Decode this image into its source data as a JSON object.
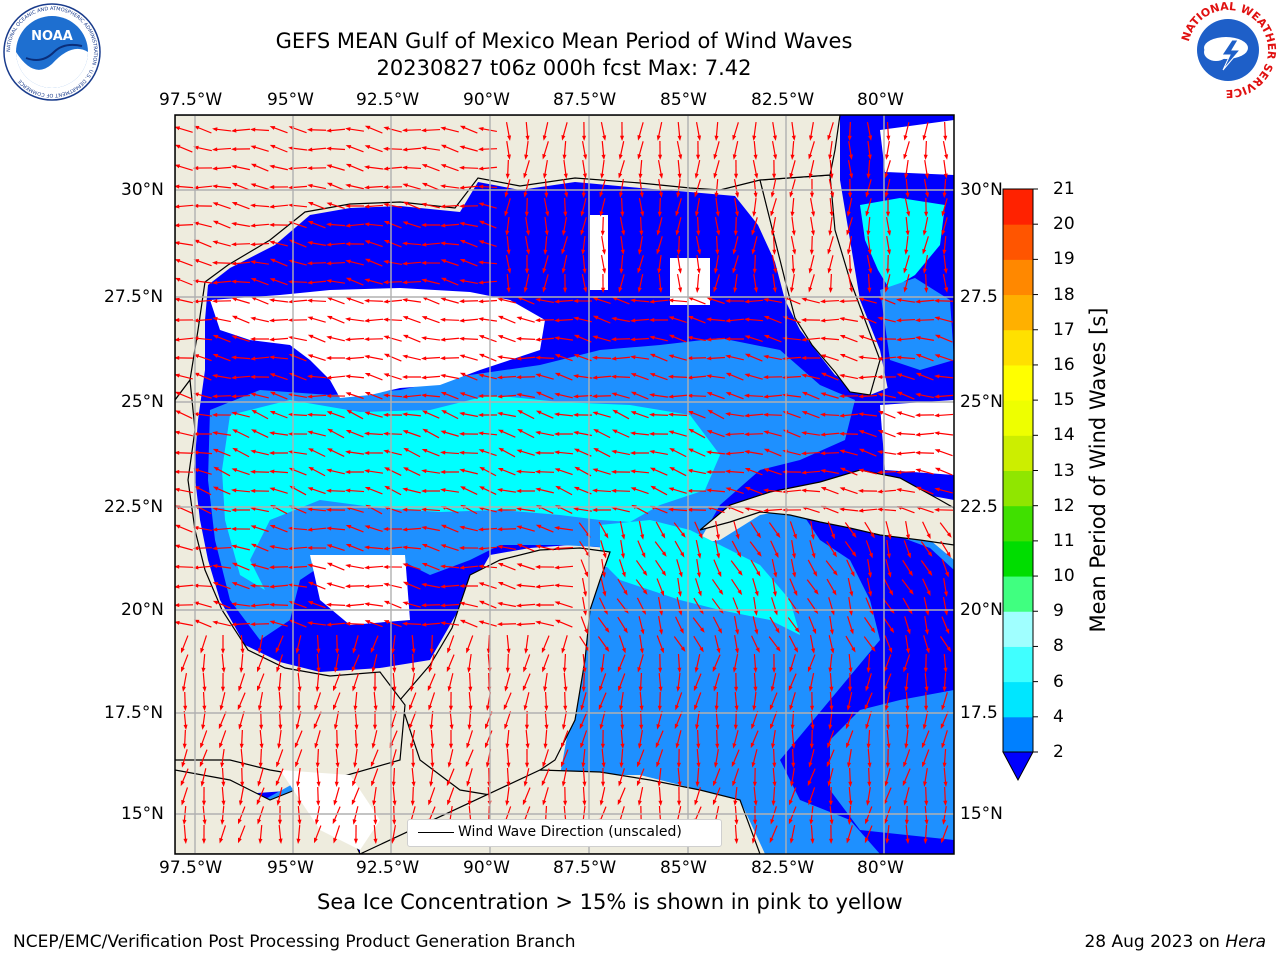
{
  "header": {
    "title_line1": "GEFS MEAN Gulf of Mexico Mean Period of Wind Waves",
    "title_line2": "20230827 t06z 000h fcst   Max: 7.42"
  },
  "logos": {
    "noaa": {
      "center_text": "NOAA",
      "ring_text": "NATIONAL OCEANIC AND ATMOSPHERIC ADMINISTRATION · U.S. DEPARTMENT OF COMMERCE"
    },
    "nws": {
      "ring_text": "NATIONAL WEATHER SERVICE"
    }
  },
  "map": {
    "lon_ticks": [
      "97.5°W",
      "95°W",
      "92.5°W",
      "90°W",
      "87.5°W",
      "85°W",
      "82.5°W",
      "80°W"
    ],
    "lat_ticks_left": [
      "30°N",
      "27.5°N",
      "25°N",
      "22.5°N",
      "20°N",
      "17.5°N",
      "15°N"
    ],
    "lat_ticks_right": [
      "30°N",
      "27.5",
      "25°N",
      "22.5",
      "20°N",
      "17.5",
      "15°N"
    ],
    "legend_text": "Wind Wave Direction (unscaled)",
    "colors": {
      "land": "#eeecde",
      "ocean_low": "#0000ff",
      "ocean_mid": "#1e90ff",
      "ocean_high": "#00ffff",
      "arrow": "#ff0000",
      "grid": "#b0b0b0"
    }
  },
  "colorbar": {
    "label": "Mean Period of Wind Waves [s]",
    "ticks": [
      "2",
      "4",
      "6",
      "8",
      "9",
      "10",
      "11",
      "12",
      "13",
      "14",
      "15",
      "16",
      "17",
      "18",
      "19",
      "20",
      "21"
    ],
    "colors": [
      "#0080ff",
      "#00e6ff",
      "#40ffff",
      "#a0ffff",
      "#40ff80",
      "#00dd00",
      "#40e000",
      "#90e600",
      "#ccee00",
      "#eeff00",
      "#ffff00",
      "#ffe000",
      "#ffb000",
      "#ff8800",
      "#ff5500",
      "#ff2200"
    ]
  },
  "caption": "Sea Ice Concentration > 15% is shown in pink to yellow",
  "footer": {
    "left": "NCEP/EMC/Verification Post Processing Product Generation Branch",
    "date": "28 Aug 2023 on ",
    "machine": "Hera"
  }
}
